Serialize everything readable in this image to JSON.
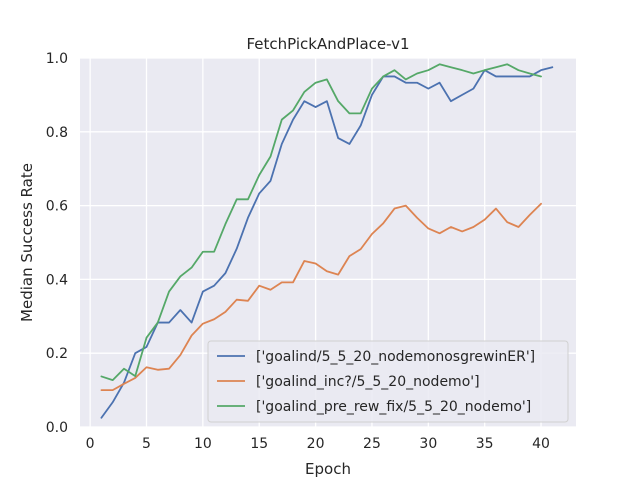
{
  "chart_data": {
    "type": "line",
    "title": "FetchPickAndPlace-v1",
    "xlabel": "Epoch",
    "ylabel": "Median Success Rate",
    "xlim": [
      -0.9,
      43.1
    ],
    "ylim": [
      0.0,
      1.0
    ],
    "xticks": [
      0,
      5,
      10,
      15,
      20,
      25,
      30,
      35,
      40
    ],
    "xtick_labels": [
      "0",
      "5",
      "10",
      "15",
      "20",
      "25",
      "30",
      "35",
      "40"
    ],
    "yticks": [
      0.0,
      0.2,
      0.4,
      0.6,
      0.8,
      1.0
    ],
    "ytick_labels": [
      "0.0",
      "0.2",
      "0.4",
      "0.6",
      "0.8",
      "1.0"
    ],
    "grid": true,
    "legend_position": "lower-right",
    "colors": {
      "background": "#eaeaf2",
      "grid": "#ffffff"
    },
    "series": [
      {
        "name": "['goalind/5_5_20_nodemonosgrewinER']",
        "color": "#4c72b0",
        "x": [
          1,
          2,
          3,
          4,
          5,
          6,
          7,
          8,
          9,
          10,
          11,
          12,
          13,
          14,
          15,
          16,
          17,
          18,
          19,
          20,
          21,
          22,
          23,
          24,
          25,
          26,
          27,
          28,
          29,
          30,
          31,
          32,
          33,
          34,
          35,
          36,
          37,
          38,
          39,
          40,
          41
        ],
        "values": [
          0.025,
          0.067,
          0.12,
          0.2,
          0.217,
          0.283,
          0.283,
          0.317,
          0.283,
          0.367,
          0.383,
          0.417,
          0.483,
          0.567,
          0.633,
          0.667,
          0.767,
          0.833,
          0.883,
          0.867,
          0.883,
          0.783,
          0.767,
          0.817,
          0.9,
          0.95,
          0.95,
          0.933,
          0.933,
          0.917,
          0.933,
          0.883,
          0.9,
          0.917,
          0.967,
          0.95,
          0.95,
          0.95,
          0.95,
          0.967,
          0.975
        ]
      },
      {
        "name": "['goalind_inc?/5_5_20_nodemo']",
        "color": "#dd8452",
        "x": [
          1,
          2,
          3,
          4,
          5,
          6,
          7,
          8,
          9,
          10,
          11,
          12,
          13,
          14,
          15,
          16,
          17,
          18,
          19,
          20,
          21,
          22,
          23,
          24,
          25,
          26,
          27,
          28,
          29,
          30,
          31,
          32,
          33,
          34,
          35,
          36,
          37,
          38,
          39,
          40
        ],
        "values": [
          0.1,
          0.1,
          0.117,
          0.133,
          0.162,
          0.155,
          0.158,
          0.195,
          0.248,
          0.28,
          0.292,
          0.312,
          0.345,
          0.342,
          0.383,
          0.372,
          0.392,
          0.392,
          0.45,
          0.443,
          0.422,
          0.413,
          0.463,
          0.482,
          0.523,
          0.552,
          0.592,
          0.6,
          0.567,
          0.538,
          0.525,
          0.542,
          0.53,
          0.542,
          0.562,
          0.592,
          0.555,
          0.542,
          0.575,
          0.605
        ]
      },
      {
        "name": "['goalind_pre_rew_fix/5_5_20_nodemo']",
        "color": "#55a868",
        "x": [
          1,
          2,
          3,
          4,
          5,
          6,
          7,
          8,
          9,
          10,
          11,
          12,
          13,
          14,
          15,
          16,
          17,
          18,
          19,
          20,
          21,
          22,
          23,
          24,
          25,
          26,
          27,
          28,
          29,
          30,
          31,
          32,
          33,
          34,
          35,
          36,
          37,
          38,
          39,
          40
        ],
        "values": [
          0.137,
          0.127,
          0.158,
          0.138,
          0.242,
          0.283,
          0.367,
          0.408,
          0.432,
          0.475,
          0.475,
          0.55,
          0.617,
          0.617,
          0.683,
          0.733,
          0.833,
          0.858,
          0.908,
          0.933,
          0.942,
          0.883,
          0.85,
          0.85,
          0.917,
          0.95,
          0.967,
          0.942,
          0.958,
          0.967,
          0.983,
          0.975,
          0.967,
          0.958,
          0.967,
          0.975,
          0.983,
          0.967,
          0.958,
          0.95
        ]
      }
    ]
  }
}
